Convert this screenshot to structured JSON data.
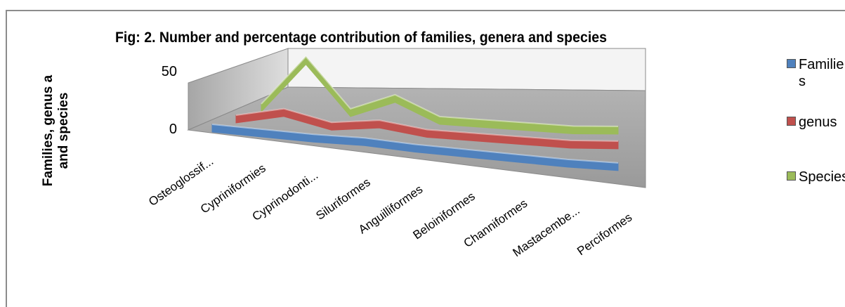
{
  "chart_data": {
    "type": "line",
    "title": "Fig: 2. Number and percentage contribution of families, genera and species",
    "ylabel_lines": [
      "Families, genus a",
      "and species"
    ],
    "ylim": [
      0,
      50
    ],
    "yticks": [
      "50",
      "0"
    ],
    "categories": [
      "Osteoglossif...",
      "Cypriniformies",
      "Cyprinodonti...",
      "Siluriformes",
      "Anguilliformes",
      "Beloiniformes",
      "Channiformes",
      "Mastacembe...",
      "Perciformes"
    ],
    "series": [
      {
        "name": "Families",
        "color": "#4f81bd",
        "values": [
          1,
          1,
          1,
          2,
          1,
          1,
          1,
          1,
          2
        ]
      },
      {
        "name": "genus",
        "color": "#c0504d",
        "values": [
          1,
          8,
          1,
          5,
          1,
          1,
          1,
          1,
          3
        ]
      },
      {
        "name": "Species",
        "color": "#9bbb59",
        "values": [
          1,
          36,
          2,
          14,
          1,
          1,
          1,
          1,
          3
        ]
      }
    ],
    "legend_position": "right",
    "grid": false
  },
  "legend": {
    "items": [
      {
        "label_a": "Familie",
        "label_b": "s"
      },
      {
        "label_a": "genus",
        "label_b": ""
      },
      {
        "label_a": "Species",
        "label_b": ""
      }
    ]
  }
}
